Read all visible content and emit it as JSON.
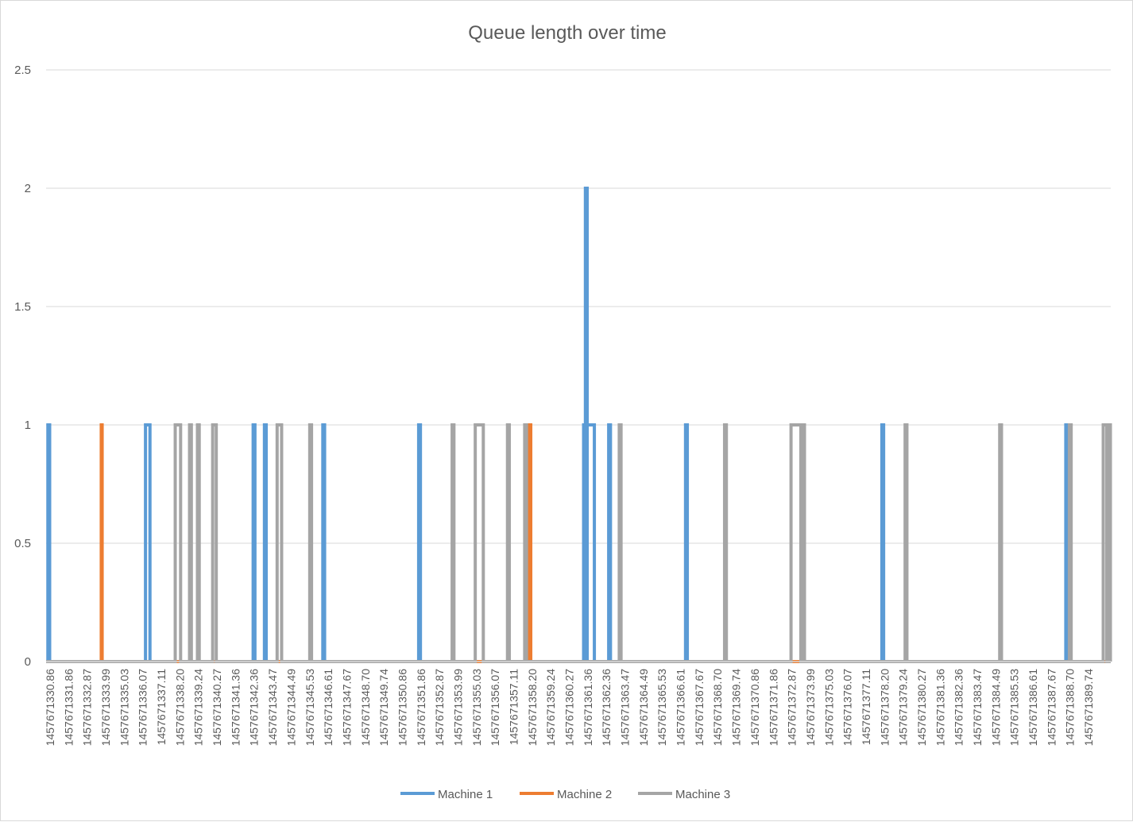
{
  "colors": {
    "machine_1": "#5b9bd5",
    "machine_2": "#ed7d31",
    "machine_3": "#a5a5a5",
    "grid": "#d9d9d9",
    "text": "#595959"
  },
  "chart_data": {
    "type": "line",
    "title": "Queue length over time",
    "xlabel": "",
    "ylabel": "",
    "ylim": [
      0,
      2.5
    ],
    "yticks": [
      "0",
      "0.5",
      "1",
      "1.5",
      "2",
      "2.5"
    ],
    "x_range": [
      1457671330.86,
      1457671390.3
    ],
    "categories": [
      "1457671330.86",
      "1457671331.86",
      "1457671332.87",
      "1457671333.99",
      "1457671335.03",
      "1457671336.07",
      "1457671337.11",
      "1457671338.20",
      "1457671339.24",
      "1457671340.27",
      "1457671341.36",
      "1457671342.36",
      "1457671343.47",
      "1457671344.49",
      "1457671345.53",
      "1457671346.61",
      "1457671347.67",
      "1457671348.70",
      "1457671349.74",
      "1457671350.86",
      "1457671351.86",
      "1457671352.87",
      "1457671353.99",
      "1457671355.03",
      "1457671356.07",
      "1457671357.11",
      "1457671358.20",
      "1457671359.24",
      "1457671360.27",
      "1457671361.36",
      "1457671362.36",
      "1457671363.47",
      "1457671364.49",
      "1457671365.53",
      "1457671366.61",
      "1457671367.67",
      "1457671368.70",
      "1457671369.74",
      "1457671370.86",
      "1457671371.86",
      "1457671372.87",
      "1457671373.99",
      "1457671375.03",
      "1457671376.07",
      "1457671377.11",
      "1457671378.20",
      "1457671379.24",
      "1457671380.27",
      "1457671381.36",
      "1457671382.36",
      "1457671383.47",
      "1457671384.49",
      "1457671385.53",
      "1457671386.61",
      "1457671387.67",
      "1457671388.70",
      "1457671389.74"
    ],
    "grid": true,
    "legend_position": "bottom",
    "series": [
      {
        "name": "Machine 1",
        "color": "#5b9bd5",
        "pulses": [
          [
            1457671330.96,
            1457671331.06,
            1
          ],
          [
            1457671336.41,
            1457671336.66,
            1
          ],
          [
            1457671342.42,
            1457671342.52,
            1
          ],
          [
            1457671343.05,
            1457671343.15,
            1
          ],
          [
            1457671346.31,
            1457671346.41,
            1
          ],
          [
            1457671351.66,
            1457671351.76,
            1
          ],
          [
            1457671360.87,
            1457671360.97,
            1
          ],
          [
            1457671360.97,
            1457671361.07,
            2
          ],
          [
            1457671361.07,
            1457671361.47,
            1
          ],
          [
            1457671362.27,
            1457671362.37,
            1
          ],
          [
            1457671366.56,
            1457671366.66,
            1
          ],
          [
            1457671377.52,
            1457671377.62,
            1
          ],
          [
            1457671387.79,
            1457671387.89,
            1
          ]
        ]
      },
      {
        "name": "Machine 2",
        "color": "#ed7d31",
        "pulses": [
          [
            1457671333.94,
            1457671333.99,
            1
          ],
          [
            1457671357.82,
            1457671357.92,
            1
          ]
        ]
      },
      {
        "name": "Machine 3",
        "color": "#a5a5a5",
        "pulses": [
          [
            1457671338.07,
            1457671338.37,
            1
          ],
          [
            1457671338.87,
            1457671338.97,
            1
          ],
          [
            1457671339.31,
            1457671339.41,
            1
          ],
          [
            1457671340.16,
            1457671340.36,
            1
          ],
          [
            1457671343.76,
            1457671344.01,
            1
          ],
          [
            1457671345.58,
            1457671345.68,
            1
          ],
          [
            1457671353.53,
            1457671353.63,
            1
          ],
          [
            1457671354.82,
            1457671355.27,
            1
          ],
          [
            1457671356.62,
            1457671356.72,
            1
          ],
          [
            1457671357.58,
            1457671357.68,
            1
          ],
          [
            1457671362.86,
            1457671362.96,
            1
          ],
          [
            1457671368.74,
            1457671368.84,
            1
          ],
          [
            1457671372.45,
            1457671373.0,
            1
          ],
          [
            1457671373.1,
            1457671373.2,
            1
          ],
          [
            1457671378.82,
            1457671378.92,
            1
          ],
          [
            1457671384.1,
            1457671384.2,
            1
          ],
          [
            1457671387.99,
            1457671388.09,
            1
          ],
          [
            1457671389.88,
            1457671390.08,
            1
          ],
          [
            1457671390.18,
            1457671390.28,
            1
          ]
        ]
      }
    ]
  }
}
